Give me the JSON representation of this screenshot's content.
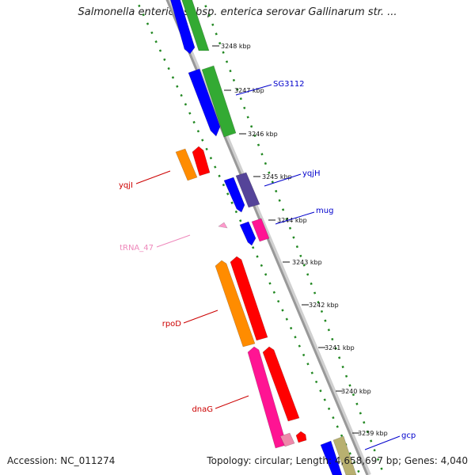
{
  "title": "Salmonella enterica subsp. enterica serovar Gallinarum str. ...",
  "accession": "Accession: NC_011274",
  "summary": "Topology: circular; Length: 4,658,697 bp; Genes: 4,040",
  "ticks": [
    "3248 kbp",
    "3247 kbp",
    "3246 kbp",
    "3245 kbp",
    "3244 kbp",
    "3243 kbp",
    "3242 kbp",
    "3241 kbp",
    "3240 kbp",
    "3239 kbp"
  ],
  "gene_labels": {
    "sg3112": "SG3112",
    "yqjh": "yqjH",
    "mug": "mug",
    "gcp": "gcp",
    "yqji": "yqjI",
    "trna_47": "tRNA_47",
    "rpod": "rpoD",
    "dnag": "dnaG"
  },
  "colors": {
    "forward_strand": "#0000ff",
    "forward_gene": "#33aa33",
    "reverse_gene": "#ff0000",
    "orange_gene": "#ff8c00",
    "magenta_gene": "#ff1493",
    "purple_gene": "#554499",
    "pink_gene": "#ee88aa",
    "olive_gene": "#b8b070",
    "trna": "#ff99cc",
    "label_blue": "#0000cc",
    "label_red": "#cc0000",
    "label_pink": "#ee88bb",
    "backbone": "#999999",
    "dotted_ring": "#228822"
  }
}
